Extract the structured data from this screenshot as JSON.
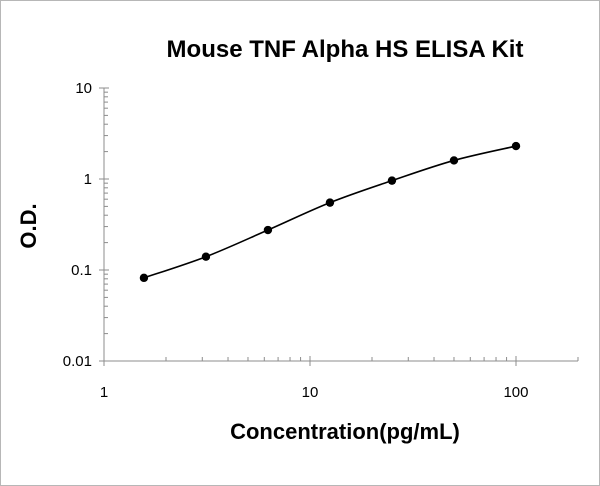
{
  "chart_data": {
    "type": "scatter",
    "title": "Mouse TNF Alpha HS ELISA Kit",
    "xlabel": "Concentration(pg/mL)",
    "ylabel": "O.D.",
    "x_scale": "log",
    "y_scale": "log",
    "xlim": [
      1,
      200
    ],
    "ylim": [
      0.01,
      10
    ],
    "x_ticks": [
      1,
      10,
      100
    ],
    "x_tick_labels": [
      "1",
      "10",
      "100"
    ],
    "y_ticks": [
      0.01,
      0.1,
      1,
      10
    ],
    "y_tick_labels": [
      "0.01",
      "0.1",
      "1",
      "10"
    ],
    "grid": false,
    "legend": "none",
    "marker_color": "#000000",
    "line_color": "#000000",
    "trendline": "smooth",
    "series": [
      {
        "x": [
          1.5625,
          3.125,
          6.25,
          12.5,
          25,
          50,
          100
        ],
        "y": [
          0.082,
          0.14,
          0.275,
          0.55,
          0.96,
          1.6,
          2.3
        ]
      }
    ]
  }
}
